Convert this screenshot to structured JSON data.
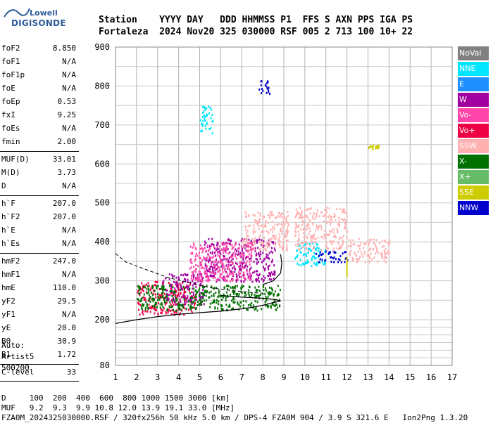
{
  "logo": {
    "line1": "Lowell",
    "line2": "DIGISONDE"
  },
  "header": {
    "line1": "Station    YYYY DAY   DDD HHMMSS P1  FFS S AXN PPS IGA PS",
    "line2": "Fortaleza  2024 Nov20 325 030000 RSF 005 2 713 100 10+ 22"
  },
  "params": [
    [
      {
        "k": "foF2",
        "v": "8.850"
      },
      {
        "k": "foF1",
        "v": "N/A"
      },
      {
        "k": "foF1p",
        "v": "N/A"
      },
      {
        "k": "foE",
        "v": "N/A"
      },
      {
        "k": "foEp",
        "v": "0.53"
      },
      {
        "k": "fxI",
        "v": "9.25"
      },
      {
        "k": "foEs",
        "v": "N/A"
      },
      {
        "k": "fmin",
        "v": "2.00"
      }
    ],
    [
      {
        "k": "MUF(D)",
        "v": "33.01"
      },
      {
        "k": "M(D)",
        "v": "3.73"
      },
      {
        "k": "D",
        "v": "N/A"
      }
    ],
    [
      {
        "k": "h`F",
        "v": "207.0"
      },
      {
        "k": "h`F2",
        "v": "207.0"
      },
      {
        "k": "h`E",
        "v": "N/A"
      },
      {
        "k": "h`Es",
        "v": "N/A"
      }
    ],
    [
      {
        "k": "hmF2",
        "v": "247.0"
      },
      {
        "k": "hmF1",
        "v": "N/A"
      },
      {
        "k": "hmE",
        "v": "110.0"
      },
      {
        "k": "yF2",
        "v": "29.5"
      },
      {
        "k": "yF1",
        "v": "N/A"
      },
      {
        "k": "yE",
        "v": "20.0"
      },
      {
        "k": "B0",
        "v": "30.9"
      },
      {
        "k": "B1",
        "v": "1.72"
      }
    ],
    [
      {
        "k": "C-level",
        "v": "33"
      }
    ]
  ],
  "extra": "Auto:\nArtist5\n500200",
  "legend": [
    {
      "label": "NoVal",
      "color": "#808080"
    },
    {
      "label": "NNE",
      "color": "#00e5ff"
    },
    {
      "label": "E",
      "color": "#1e90ff"
    },
    {
      "label": "W",
      "color": "#a000a0"
    },
    {
      "label": "Vo-",
      "color": "#ff44aa"
    },
    {
      "label": "Vo+",
      "color": "#ee0044"
    },
    {
      "label": "SSW",
      "color": "#ffb0b0"
    },
    {
      "label": "X-",
      "color": "#007000"
    },
    {
      "label": "X+",
      "color": "#66bb66"
    },
    {
      "label": "SSE",
      "color": "#cccc00"
    },
    {
      "label": "NNW",
      "color": "#0000cc"
    }
  ],
  "bottom": {
    "line1": "D     100  200  400  600  800 1000 1500 3000 [km]",
    "line2": "MUF   9.2  9.3  9.9 10.8 12.0 13.9 19.1 33.0 [MHz]",
    "line3": "FZA0M_2024325030000.RSF / 320fx256h 50 kHz 5.0 km / DPS-4 FZA0M 904 / 3.9 S 321.6 E   Ion2Png 1.3.20"
  },
  "chart_data": {
    "type": "scatter",
    "title": "",
    "xlabel": "",
    "ylabel": "",
    "xlim": [
      1,
      17
    ],
    "ylim": [
      80,
      900
    ],
    "x_ticks": [
      1,
      2,
      3,
      4,
      5,
      6,
      7,
      8,
      9,
      10,
      11,
      12,
      13,
      14,
      15,
      16,
      17
    ],
    "y_ticks": [
      80,
      200,
      300,
      400,
      500,
      600,
      700,
      800,
      900
    ],
    "grid": true,
    "legend_position": "right",
    "clusters": [
      {
        "series": "Vo+",
        "x": [
          2.0,
          4.8
        ],
        "y": [
          215,
          300
        ]
      },
      {
        "series": "W",
        "x": [
          3.2,
          5.2
        ],
        "y": [
          240,
          320
        ]
      },
      {
        "series": "X-",
        "x": [
          2.0,
          8.8
        ],
        "y": [
          225,
          290
        ]
      },
      {
        "series": "W",
        "x": [
          5.2,
          8.6
        ],
        "y": [
          300,
          410
        ]
      },
      {
        "series": "SSW",
        "x": [
          7.0,
          9.2
        ],
        "y": [
          380,
          480
        ]
      },
      {
        "series": "Vo-",
        "x": [
          4.5,
          7.5
        ],
        "y": [
          300,
          400
        ]
      },
      {
        "series": "NNE",
        "x": [
          9.5,
          11.0
        ],
        "y": [
          340,
          400
        ]
      },
      {
        "series": "NNW",
        "x": [
          10.5,
          12.0
        ],
        "y": [
          350,
          380
        ]
      },
      {
        "series": "SSW",
        "x": [
          12.0,
          14.0
        ],
        "y": [
          350,
          410
        ]
      },
      {
        "series": "SSW",
        "x": [
          9.5,
          12.0
        ],
        "y": [
          380,
          490
        ]
      },
      {
        "series": "NNW",
        "x": [
          7.8,
          8.3
        ],
        "y": [
          780,
          820
        ]
      },
      {
        "series": "SSE",
        "x": [
          13.0,
          13.5
        ],
        "y": [
          640,
          650
        ]
      },
      {
        "series": "NNE",
        "x": [
          5.0,
          5.6
        ],
        "y": [
          680,
          750
        ]
      }
    ],
    "vertical_line": {
      "series": "SSE",
      "x": 12.0,
      "y": [
        310,
        360
      ]
    },
    "profile": [
      [
        1.0,
        190
      ],
      [
        2.0,
        200
      ],
      [
        3.0,
        208
      ],
      [
        4.0,
        214
      ],
      [
        5.0,
        218
      ],
      [
        6.0,
        222
      ],
      [
        7.0,
        228
      ],
      [
        7.5,
        232
      ],
      [
        8.0,
        237
      ],
      [
        8.5,
        244
      ],
      [
        8.85,
        248
      ],
      [
        8.6,
        252
      ],
      [
        8.0,
        255
      ],
      [
        7.0,
        258
      ],
      [
        6.0,
        262
      ]
    ],
    "dashed_curve": [
      [
        1.0,
        370
      ],
      [
        1.5,
        348
      ],
      [
        2.5,
        328
      ],
      [
        3.5,
        308
      ],
      [
        4.5,
        295
      ],
      [
        5.5,
        282
      ],
      [
        6.5,
        275
      ],
      [
        7.5,
        270
      ],
      [
        8.0,
        268
      ]
    ],
    "trace_curve": [
      [
        8.0,
        290
      ],
      [
        8.5,
        300
      ],
      [
        8.85,
        320
      ],
      [
        8.9,
        345
      ],
      [
        8.85,
        368
      ]
    ]
  }
}
